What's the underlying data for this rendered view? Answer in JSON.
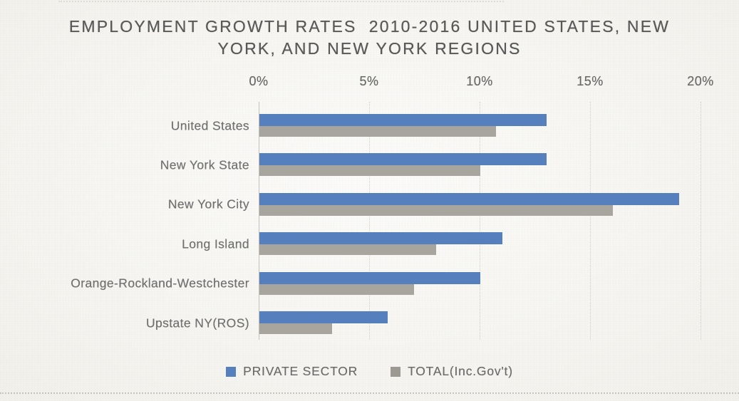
{
  "title": {
    "lines": [
      "EMPLOYMENT GROWTH RATES  2010-2016 UNITED STATES, NEW",
      "YORK, AND NEW YORK REGIONS"
    ]
  },
  "chart_data": {
    "type": "bar",
    "orientation": "horizontal",
    "title": "EMPLOYMENT GROWTH RATES 2010-2016 UNITED STATES, NEW YORK, AND NEW YORK REGIONS",
    "categories": [
      "United States",
      "New York State",
      "New York City",
      "Long Island",
      "Orange-Rockland-Westchester",
      "Upstate NY(ROS)"
    ],
    "series": [
      {
        "name": "PRIVATE SECTOR",
        "color": "#5580bd",
        "values": [
          13,
          13,
          19,
          11,
          10,
          5.8
        ]
      },
      {
        "name": "TOTAL(Inc.Gov't)",
        "color": "#a8a59e",
        "swatch_color": "#9c9992",
        "values": [
          10.7,
          10,
          16,
          8,
          7,
          3.3
        ]
      }
    ],
    "value_unit": "%",
    "xlim": [
      0,
      20
    ],
    "x_ticks": [
      {
        "label": "0%",
        "value": 0
      },
      {
        "label": "5%",
        "value": 5
      },
      {
        "label": "10%",
        "value": 10
      },
      {
        "label": "15%",
        "value": 15
      },
      {
        "label": "20%",
        "value": 20
      }
    ],
    "grid": true,
    "legend_position": "bottom"
  }
}
